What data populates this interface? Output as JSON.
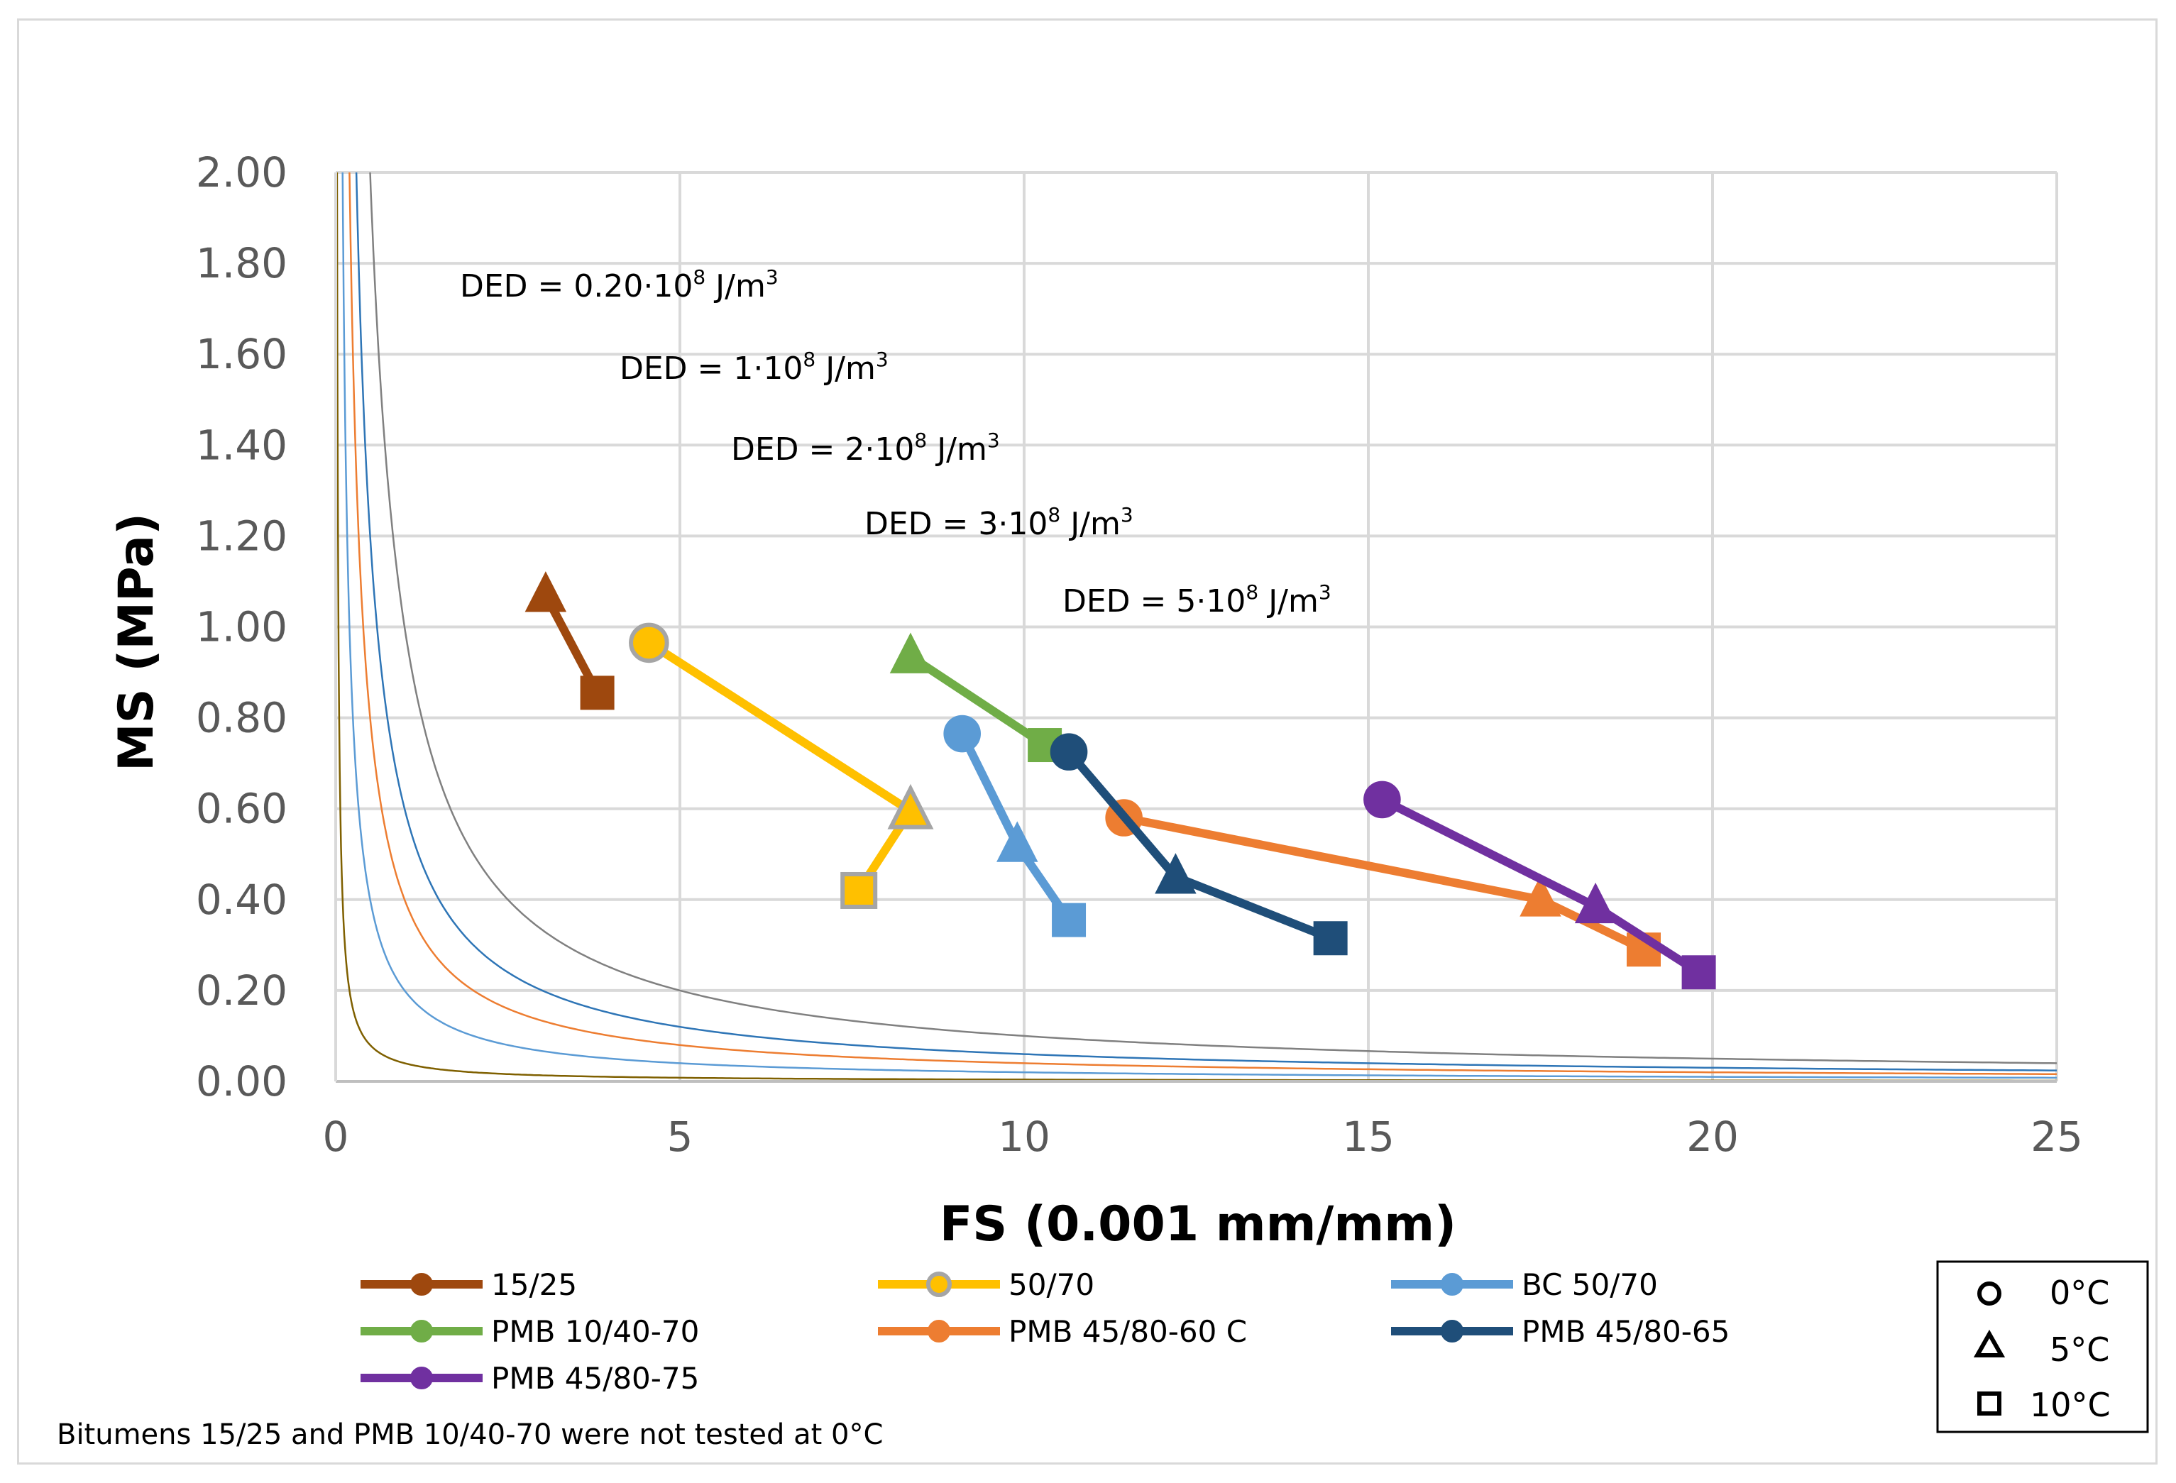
{
  "chart_data": {
    "type": "line",
    "xlabel": "FS (0.001 mm/mm)",
    "ylabel": "MS (MPa)",
    "xlim": [
      0,
      25
    ],
    "ylim": [
      0,
      2.0
    ],
    "x_ticks": [
      "0",
      "5",
      "10",
      "15",
      "20",
      "25"
    ],
    "y_ticks": [
      "0.00",
      "0.20",
      "0.40",
      "0.60",
      "0.80",
      "1.00",
      "1.20",
      "1.40",
      "1.60",
      "1.80",
      "2.00"
    ],
    "grid": true,
    "series": [
      {
        "name": "15/25",
        "color": "#9e480e",
        "points": [
          {
            "temp": "5°C",
            "x": 3.05,
            "y": 1.07
          },
          {
            "temp": "10°C",
            "x": 3.8,
            "y": 0.855
          }
        ]
      },
      {
        "name": "50/70",
        "color": "#ffc000",
        "marker_border": "#a5a5a5",
        "points": [
          {
            "temp": "0°C",
            "x": 4.55,
            "y": 0.965
          },
          {
            "temp": "5°C",
            "x": 8.35,
            "y": 0.595
          },
          {
            "temp": "10°C",
            "x": 7.6,
            "y": 0.42
          }
        ]
      },
      {
        "name": "BC 50/70",
        "color": "#5b9bd5",
        "points": [
          {
            "temp": "0°C",
            "x": 9.1,
            "y": 0.765
          },
          {
            "temp": "5°C",
            "x": 9.9,
            "y": 0.52
          },
          {
            "temp": "10°C",
            "x": 10.65,
            "y": 0.355
          }
        ]
      },
      {
        "name": "PMB 10/40-70",
        "color": "#70ad47",
        "points": [
          {
            "temp": "5°C",
            "x": 8.35,
            "y": 0.935
          },
          {
            "temp": "10°C",
            "x": 10.3,
            "y": 0.74
          }
        ]
      },
      {
        "name": "PMB 45/80-60 C",
        "color": "#ed7d31",
        "points": [
          {
            "temp": "0°C",
            "x": 11.45,
            "y": 0.58
          },
          {
            "temp": "5°C",
            "x": 17.5,
            "y": 0.4
          },
          {
            "temp": "10°C",
            "x": 19.0,
            "y": 0.29
          }
        ]
      },
      {
        "name": "PMB 45/80-65",
        "color": "#1f4e79",
        "points": [
          {
            "temp": "0°C",
            "x": 10.65,
            "y": 0.725
          },
          {
            "temp": "5°C",
            "x": 12.2,
            "y": 0.45
          },
          {
            "temp": "10°C",
            "x": 14.45,
            "y": 0.315
          }
        ]
      },
      {
        "name": "PMB 45/80-75",
        "color": "#7030a0",
        "points": [
          {
            "temp": "0°C",
            "x": 15.2,
            "y": 0.62
          },
          {
            "temp": "5°C",
            "x": 18.3,
            "y": 0.385
          },
          {
            "temp": "10°C",
            "x": 19.8,
            "y": 0.24
          }
        ]
      }
    ],
    "ded_curves": [
      {
        "label_base": "DED = 0.20·10",
        "label_exp": "8",
        "label_unit": " J/m",
        "label_unit_exp": "3",
        "k": 0.2,
        "color": "#7f6000"
      },
      {
        "label_base": "DED = 1·10",
        "label_exp": "8",
        "label_unit": " J/m",
        "label_unit_exp": "3",
        "k": 1.0,
        "color": "#5b9bd5"
      },
      {
        "label_base": "DED = 2·10",
        "label_exp": "8",
        "label_unit": " J/m",
        "label_unit_exp": "3",
        "k": 2.0,
        "color": "#ed7d31"
      },
      {
        "label_base": "DED = 3·10",
        "label_exp": "8",
        "label_unit": " J/m",
        "label_unit_exp": "3",
        "k": 3.0,
        "color": "#2e75b6"
      },
      {
        "label_base": "DED = 5·10",
        "label_exp": "8",
        "label_unit": " J/m",
        "label_unit_exp": "3",
        "k": 5.0,
        "color": "#808080"
      }
    ],
    "marker_legend": [
      {
        "symbol": "circle",
        "label": "0°C"
      },
      {
        "symbol": "triangle",
        "label": "5°C"
      },
      {
        "symbol": "square",
        "label": "10°C"
      }
    ],
    "footnote": "Bitumens 15/25 and PMB 10/40-70 were not tested at 0°C"
  }
}
